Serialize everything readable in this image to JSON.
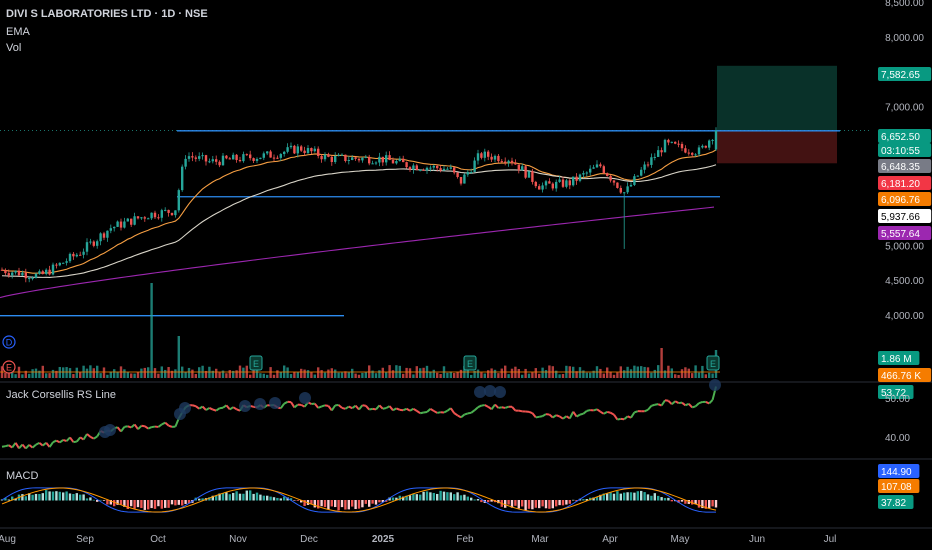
{
  "header": {
    "symbol": "DIVI S LABORATORIES LTD · 1D · NSE",
    "ema_label": "EMA",
    "vol_label": "Vol"
  },
  "panes": {
    "rs_label": "Jack Corsellis RS Line",
    "macd_label": "MACD"
  },
  "colors": {
    "up": "#26a69a",
    "down": "#ef5350",
    "ema_fast": "#f59e42",
    "ema_mid": "#d8d4c8",
    "ema_slow": "#9c27b0",
    "channel": "#2d8cf0",
    "macd_line": "#2962ff",
    "signal_line": "#ff9800",
    "target_zone": "#0b3a30",
    "stop_zone": "#4a1414"
  },
  "price_axis": {
    "ticks": [
      "8,500.00",
      "8,000.00",
      "7,500.00",
      "7,000.00",
      "6,500.00",
      "6,000.00",
      "5,500.00",
      "5,000.00",
      "4,500.00",
      "4,000.00"
    ],
    "badges": [
      {
        "text": "7,582.65",
        "color": "#089981",
        "fg": "#ffffff"
      },
      {
        "text": "6,652.50",
        "color": "#089981",
        "fg": "#ffffff"
      },
      {
        "text": "03:10:55",
        "color": "#089981",
        "fg": "#ffffff"
      },
      {
        "text": "6,648.35",
        "color": "#787b86",
        "fg": "#ffffff"
      },
      {
        "text": "6,181.20",
        "color": "#f23645",
        "fg": "#ffffff"
      },
      {
        "text": "6,096.76",
        "color": "#f57c00",
        "fg": "#ffffff"
      },
      {
        "text": "5,937.66",
        "color": "#ffffff",
        "fg": "#000000"
      },
      {
        "text": "5,557.64",
        "color": "#9c27b0",
        "fg": "#ffffff"
      },
      {
        "text": "1.86 M",
        "color": "#089981",
        "fg": "#ffffff"
      },
      {
        "text": "466.76 K",
        "color": "#f57c00",
        "fg": "#ffffff"
      },
      {
        "text": "53.72",
        "color": "#089981",
        "fg": "#ffffff"
      },
      {
        "text": "144.90",
        "color": "#2962ff",
        "fg": "#ffffff"
      },
      {
        "text": "107.08",
        "color": "#f57c00",
        "fg": "#ffffff"
      },
      {
        "text": "37.82",
        "color": "#089981",
        "fg": "#ffffff"
      }
    ]
  },
  "rs_axis": {
    "ticks": [
      "50.00",
      "40.00"
    ]
  },
  "time_axis": {
    "labels": [
      "Aug",
      "Sep",
      "Oct",
      "Nov",
      "Dec",
      "2025",
      "Feb",
      "Mar",
      "Apr",
      "May",
      "Jun",
      "Jul"
    ]
  },
  "chart_data": {
    "type": "candlestick",
    "title": "DIVI S LABORATORIES LTD · 1D · NSE",
    "ylim": [
      3800,
      8600
    ],
    "channel_resistance": 6648.35,
    "channel_support": 5700,
    "lower_line": 3990,
    "last_price": 6652.5,
    "target": 7582.65,
    "stop": 6181.2,
    "ema_values": [
      6096.76,
      5937.66,
      5557.64
    ],
    "volume_last": "1.86 M",
    "volume_avg": "466.76 K",
    "rs_last": 53.72,
    "macd": {
      "macd": 144.9,
      "signal": 107.08,
      "histogram": 37.82
    },
    "candles": [
      {
        "x": "Aug",
        "close": 4600
      },
      {
        "x": "Sep",
        "close": 5000
      },
      {
        "x": "Oct",
        "close": 5900
      },
      {
        "x": "Nov",
        "close": 6300
      },
      {
        "x": "Dec",
        "close": 6350
      },
      {
        "x": "2025",
        "close": 6200
      },
      {
        "x": "Feb",
        "close": 6300
      },
      {
        "x": "Mar",
        "close": 5900
      },
      {
        "x": "Apr",
        "close": 5500
      },
      {
        "x": "May",
        "close": 6400
      }
    ]
  }
}
